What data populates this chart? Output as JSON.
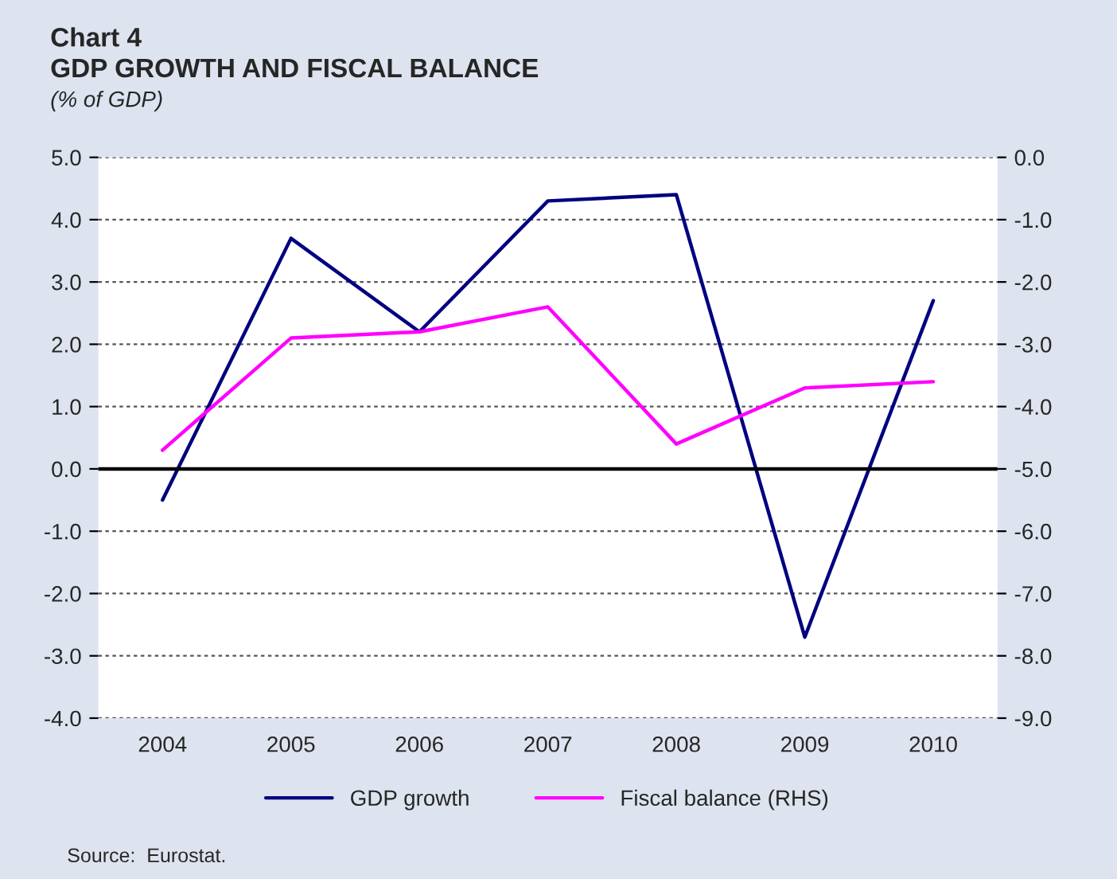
{
  "chart_data": {
    "type": "line",
    "title": "Chart 4",
    "subtitle": "GDP GROWTH AND FISCAL BALANCE",
    "annotations": [
      "(% of GDP)",
      "Source:  Eurostat."
    ],
    "categories": [
      "2004",
      "2005",
      "2006",
      "2007",
      "2008",
      "2009",
      "2010"
    ],
    "series": [
      {
        "name": "GDP growth",
        "color": "#000080",
        "values": [
          -0.5,
          3.7,
          2.2,
          4.3,
          4.4,
          -2.7,
          2.7
        ]
      },
      {
        "name": "Fiscal balance (RHS)",
        "color": "#ff00ff",
        "axis": "y2",
        "values": [
          -4.7,
          -2.9,
          -2.8,
          -2.4,
          -4.6,
          -3.7,
          -3.6
        ]
      }
    ],
    "ylim": [
      -4.0,
      5.0
    ],
    "yticks": [
      {
        "value": -4.0,
        "label": "-4.0"
      },
      {
        "value": -3.0,
        "label": "-3.0"
      },
      {
        "value": -2.0,
        "label": "-2.0"
      },
      {
        "value": -1.0,
        "label": "-1.0"
      },
      {
        "value": 0.0,
        "label": "0.0"
      },
      {
        "value": 1.0,
        "label": "1.0"
      },
      {
        "value": 2.0,
        "label": "2.0"
      },
      {
        "value": 3.0,
        "label": "3.0"
      },
      {
        "value": 4.0,
        "label": "4.0"
      },
      {
        "value": 5.0,
        "label": "5.0"
      }
    ],
    "y2lim": [
      -9.0,
      0.0
    ],
    "y2ticks": [
      {
        "value": -9.0,
        "label": "-9.0"
      },
      {
        "value": -8.0,
        "label": "-8.0"
      },
      {
        "value": -7.0,
        "label": "-7.0"
      },
      {
        "value": -6.0,
        "label": "-6.0"
      },
      {
        "value": -5.0,
        "label": "-5.0"
      },
      {
        "value": -4.0,
        "label": "-4.0"
      },
      {
        "value": -3.0,
        "label": "-3.0"
      },
      {
        "value": -2.0,
        "label": "-2.0"
      },
      {
        "value": -1.0,
        "label": "-1.0"
      },
      {
        "value": 0.0,
        "label": "0.0"
      }
    ],
    "ref_lines": [
      {
        "axis": "y",
        "value": 0.0,
        "color": "#000000"
      }
    ],
    "grid": "y",
    "legend": "bottom",
    "marker": "none",
    "line_style": "solid"
  }
}
